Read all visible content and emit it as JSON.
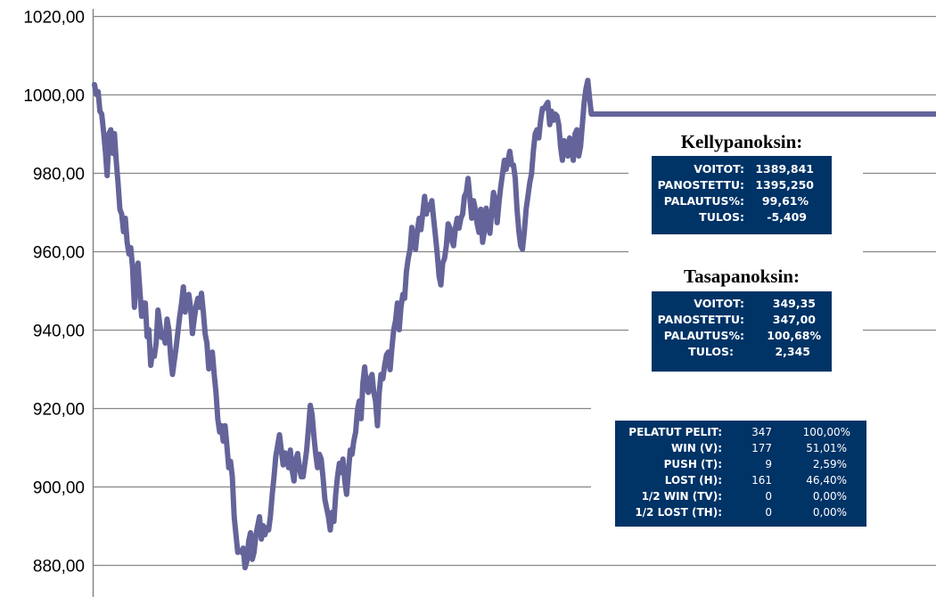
{
  "chart_data": {
    "type": "line",
    "title": "",
    "xlabel": "",
    "ylabel": "",
    "ylim": [
      880,
      1020
    ],
    "yticks": [
      "880,00",
      "900,00",
      "920,00",
      "940,00",
      "960,00",
      "980,00",
      "1000,00",
      "1020,00"
    ],
    "ytick_values": [
      880,
      900,
      920,
      940,
      960,
      980,
      1000,
      1020
    ],
    "grid": true,
    "line_color": "#64649a",
    "values": [
      1002.5,
      1000,
      1000.7,
      995.7,
      995,
      990.5,
      985.5,
      979.3,
      990,
      991,
      985,
      990,
      983,
      977.5,
      970.7,
      969.5,
      965,
      968.4,
      962.3,
      959.3,
      960.9,
      955.9,
      945.7,
      954.8,
      957,
      950,
      943.4,
      946.8,
      946.8,
      938.2,
      940,
      930.9,
      934.3,
      933.2,
      936.6,
      945,
      941.6,
      938,
      939,
      936.6,
      942.7,
      940,
      933.2,
      928.6,
      932,
      935.5,
      939.5,
      943.4,
      946.8,
      950.9,
      944.5,
      947.3,
      949,
      945.7,
      939,
      942.7,
      946,
      948,
      945.7,
      949.3,
      944.5,
      939,
      936.6,
      930,
      933.2,
      934.3,
      928.6,
      924,
      917.3,
      913.9,
      915.5,
      911.6,
      915.5,
      910.5,
      904.8,
      906.4,
      902.5,
      892.3,
      887.7,
      883.2,
      883.6,
      883.2,
      884.3,
      879.3,
      880.9,
      885.9,
      888.2,
      881.4,
      883.2,
      887.7,
      890,
      892.3,
      886.6,
      890,
      887.7,
      889.5,
      888.9,
      892.3,
      898,
      902.5,
      907.7,
      910.5,
      913.2,
      909.3,
      905.5,
      908.6,
      908.2,
      904.8,
      909.3,
      904.1,
      901.4,
      906.8,
      908.4,
      904.8,
      902.5,
      902.5,
      905.9,
      909.3,
      915,
      920.7,
      918.4,
      912.7,
      908.2,
      904.8,
      908.2,
      907,
      902.5,
      896.8,
      894.5,
      892.3,
      888.9,
      893.4,
      891.1,
      898,
      902.5,
      905.9,
      903.6,
      907,
      901.4,
      898,
      903.6,
      909.3,
      908.2,
      911.6,
      913.9,
      919.5,
      921.8,
      917.3,
      926.4,
      930.5,
      925.2,
      924,
      927.5,
      928.6,
      924,
      921.8,
      915.5,
      924,
      928.6,
      927.5,
      930.9,
      933.6,
      934.3,
      929.8,
      935.5,
      940,
      942.3,
      946.8,
      940,
      945.7,
      949,
      948,
      954.8,
      958.2,
      960.5,
      966.1,
      962.7,
      960.5,
      965,
      968.4,
      965.5,
      969.5,
      974,
      969.5,
      971.8,
      970.7,
      972.9,
      968.4,
      963.9,
      959.3,
      953.6,
      951.4,
      957,
      958.2,
      961.4,
      967,
      965.9,
      962.7,
      961.4,
      965.9,
      968.4,
      965.9,
      968.4,
      969.5,
      974,
      975,
      978.6,
      973.6,
      968.4,
      972.9,
      970.7,
      967,
      964.8,
      970.7,
      962.3,
      965.2,
      971,
      968.4,
      964.6,
      970,
      975,
      973,
      967.3,
      972.3,
      976.4,
      979.8,
      983.2,
      980.9,
      983.2,
      985.5,
      982.1,
      982,
      978.6,
      970.7,
      965,
      961.4,
      960.5,
      965,
      970.7,
      974,
      977.5,
      979.8,
      985.5,
      990,
      991,
      988.9,
      993.4,
      996.4,
      996.4,
      997.3,
      998,
      992.3,
      995.7,
      993.4,
      995,
      994.5,
      992.3,
      986.6,
      983.2,
      988.2,
      986,
      984.3,
      988.9,
      986.6,
      983.2,
      990,
      991,
      984.3,
      986.6,
      992.3,
      998,
      1001.4,
      1003.6,
      999,
      995,
      995,
      995,
      995,
      995,
      995,
      995,
      995,
      995,
      995,
      995,
      995,
      995,
      995,
      995,
      995,
      995,
      995,
      995,
      995,
      995,
      995,
      995,
      995,
      995,
      995,
      995,
      995,
      995,
      995,
      995,
      995,
      995,
      995,
      995,
      995,
      995,
      995,
      995,
      995,
      995,
      995,
      995,
      995,
      995,
      995,
      995,
      995,
      995,
      995,
      995,
      995,
      995,
      995,
      995,
      995,
      995,
      995,
      995,
      995,
      995,
      995,
      995,
      995,
      995,
      995,
      995,
      995,
      995,
      995,
      995,
      995,
      995,
      995,
      995,
      995,
      995,
      995,
      995,
      995,
      995,
      995,
      995,
      995,
      995,
      995,
      995,
      995,
      995,
      995,
      995,
      995,
      995,
      995,
      995,
      995,
      995,
      995,
      995,
      995,
      995,
      995,
      995,
      995,
      995,
      995,
      995,
      995,
      995,
      995,
      995,
      995,
      995,
      995,
      995,
      995,
      995,
      995,
      995,
      995,
      995,
      995,
      995,
      995,
      995,
      995,
      995,
      995,
      995,
      995,
      995,
      995,
      995,
      995,
      995,
      995,
      995,
      995,
      995,
      995,
      995,
      995,
      995,
      995,
      995,
      995,
      995,
      995,
      995,
      995,
      995,
      995,
      995,
      995,
      995,
      995,
      995,
      995,
      995,
      995,
      995,
      995,
      995,
      995,
      995,
      995,
      995,
      995,
      995,
      995,
      995,
      995,
      995,
      995,
      995,
      995,
      995,
      995,
      995,
      995,
      995,
      995,
      995,
      995,
      995,
      995,
      995,
      995,
      995,
      995,
      995
    ]
  },
  "kelly": {
    "title": "Kellypanoksin:",
    "rows": [
      {
        "label": "VOITOT:",
        "value": "1389,841"
      },
      {
        "label": "PANOSTETTU:",
        "value": "1395,250"
      },
      {
        "label": "PALAUTUS%:",
        "value": "99,61%"
      },
      {
        "label": "TULOS:",
        "value": "-5,409"
      }
    ]
  },
  "tasa": {
    "title": "Tasapanoksin:",
    "rows": [
      {
        "label": "VOITOT:",
        "value": "349,35"
      },
      {
        "label": "PANOSTETTU:",
        "value": "347,00"
      },
      {
        "label": "PALAUTUS%:",
        "value": "100,68%"
      },
      {
        "label": "TULOS:",
        "value": "2,345"
      }
    ]
  },
  "stats": {
    "rows": [
      {
        "label": "PELATUT PELIT:",
        "count": "347",
        "pct": "100,00%"
      },
      {
        "label": "WIN (V):",
        "count": "177",
        "pct": "51,01%"
      },
      {
        "label": "PUSH (T):",
        "count": "9",
        "pct": "2,59%"
      },
      {
        "label": "LOST (H):",
        "count": "161",
        "pct": "46,40%"
      },
      {
        "label": "1/2 WIN (TV):",
        "count": "0",
        "pct": "0,00%"
      },
      {
        "label": "1/2 LOST (TH):",
        "count": "0",
        "pct": "0,00%"
      }
    ],
    "box_color": "#003366"
  }
}
